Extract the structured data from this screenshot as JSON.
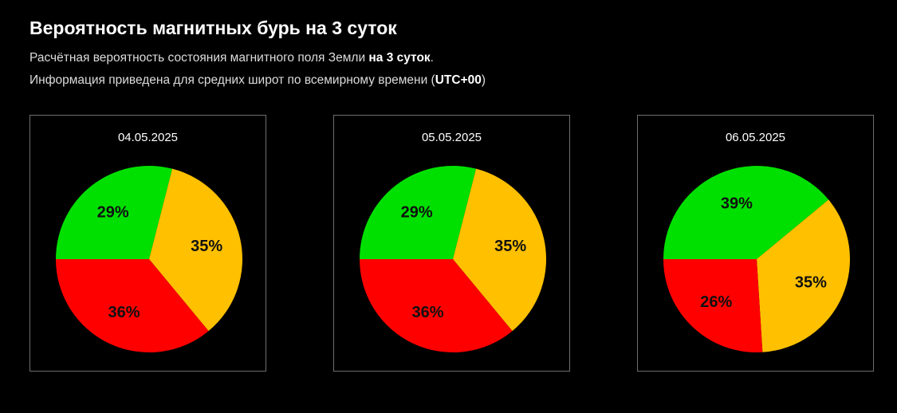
{
  "header": {
    "title": "Вероятность магнитных бурь на 3 суток",
    "line1_prefix": "Расчётная вероятность состояния магнитного поля Земли ",
    "line1_bold": "на 3 суток",
    "line1_suffix": ".",
    "line2_prefix": "Информация приведена для средних широт по всемирному времени (",
    "line2_bold": "UTC+00",
    "line2_suffix": ")"
  },
  "colors": {
    "green": "#00e000",
    "yellow": "#ffc000",
    "red": "#ff0000"
  },
  "chart_data": [
    {
      "type": "pie",
      "title": "04.05.2025",
      "slices": [
        {
          "color": "green",
          "value": 29,
          "label": "29%"
        },
        {
          "color": "yellow",
          "value": 35,
          "label": "35%"
        },
        {
          "color": "red",
          "value": 36,
          "label": "36%"
        }
      ]
    },
    {
      "type": "pie",
      "title": "05.05.2025",
      "slices": [
        {
          "color": "green",
          "value": 29,
          "label": "29%"
        },
        {
          "color": "yellow",
          "value": 35,
          "label": "35%"
        },
        {
          "color": "red",
          "value": 36,
          "label": "36%"
        }
      ]
    },
    {
      "type": "pie",
      "title": "06.05.2025",
      "slices": [
        {
          "color": "green",
          "value": 39,
          "label": "39%"
        },
        {
          "color": "yellow",
          "value": 35,
          "label": "35%"
        },
        {
          "color": "red",
          "value": 26,
          "label": "26%"
        }
      ]
    }
  ]
}
